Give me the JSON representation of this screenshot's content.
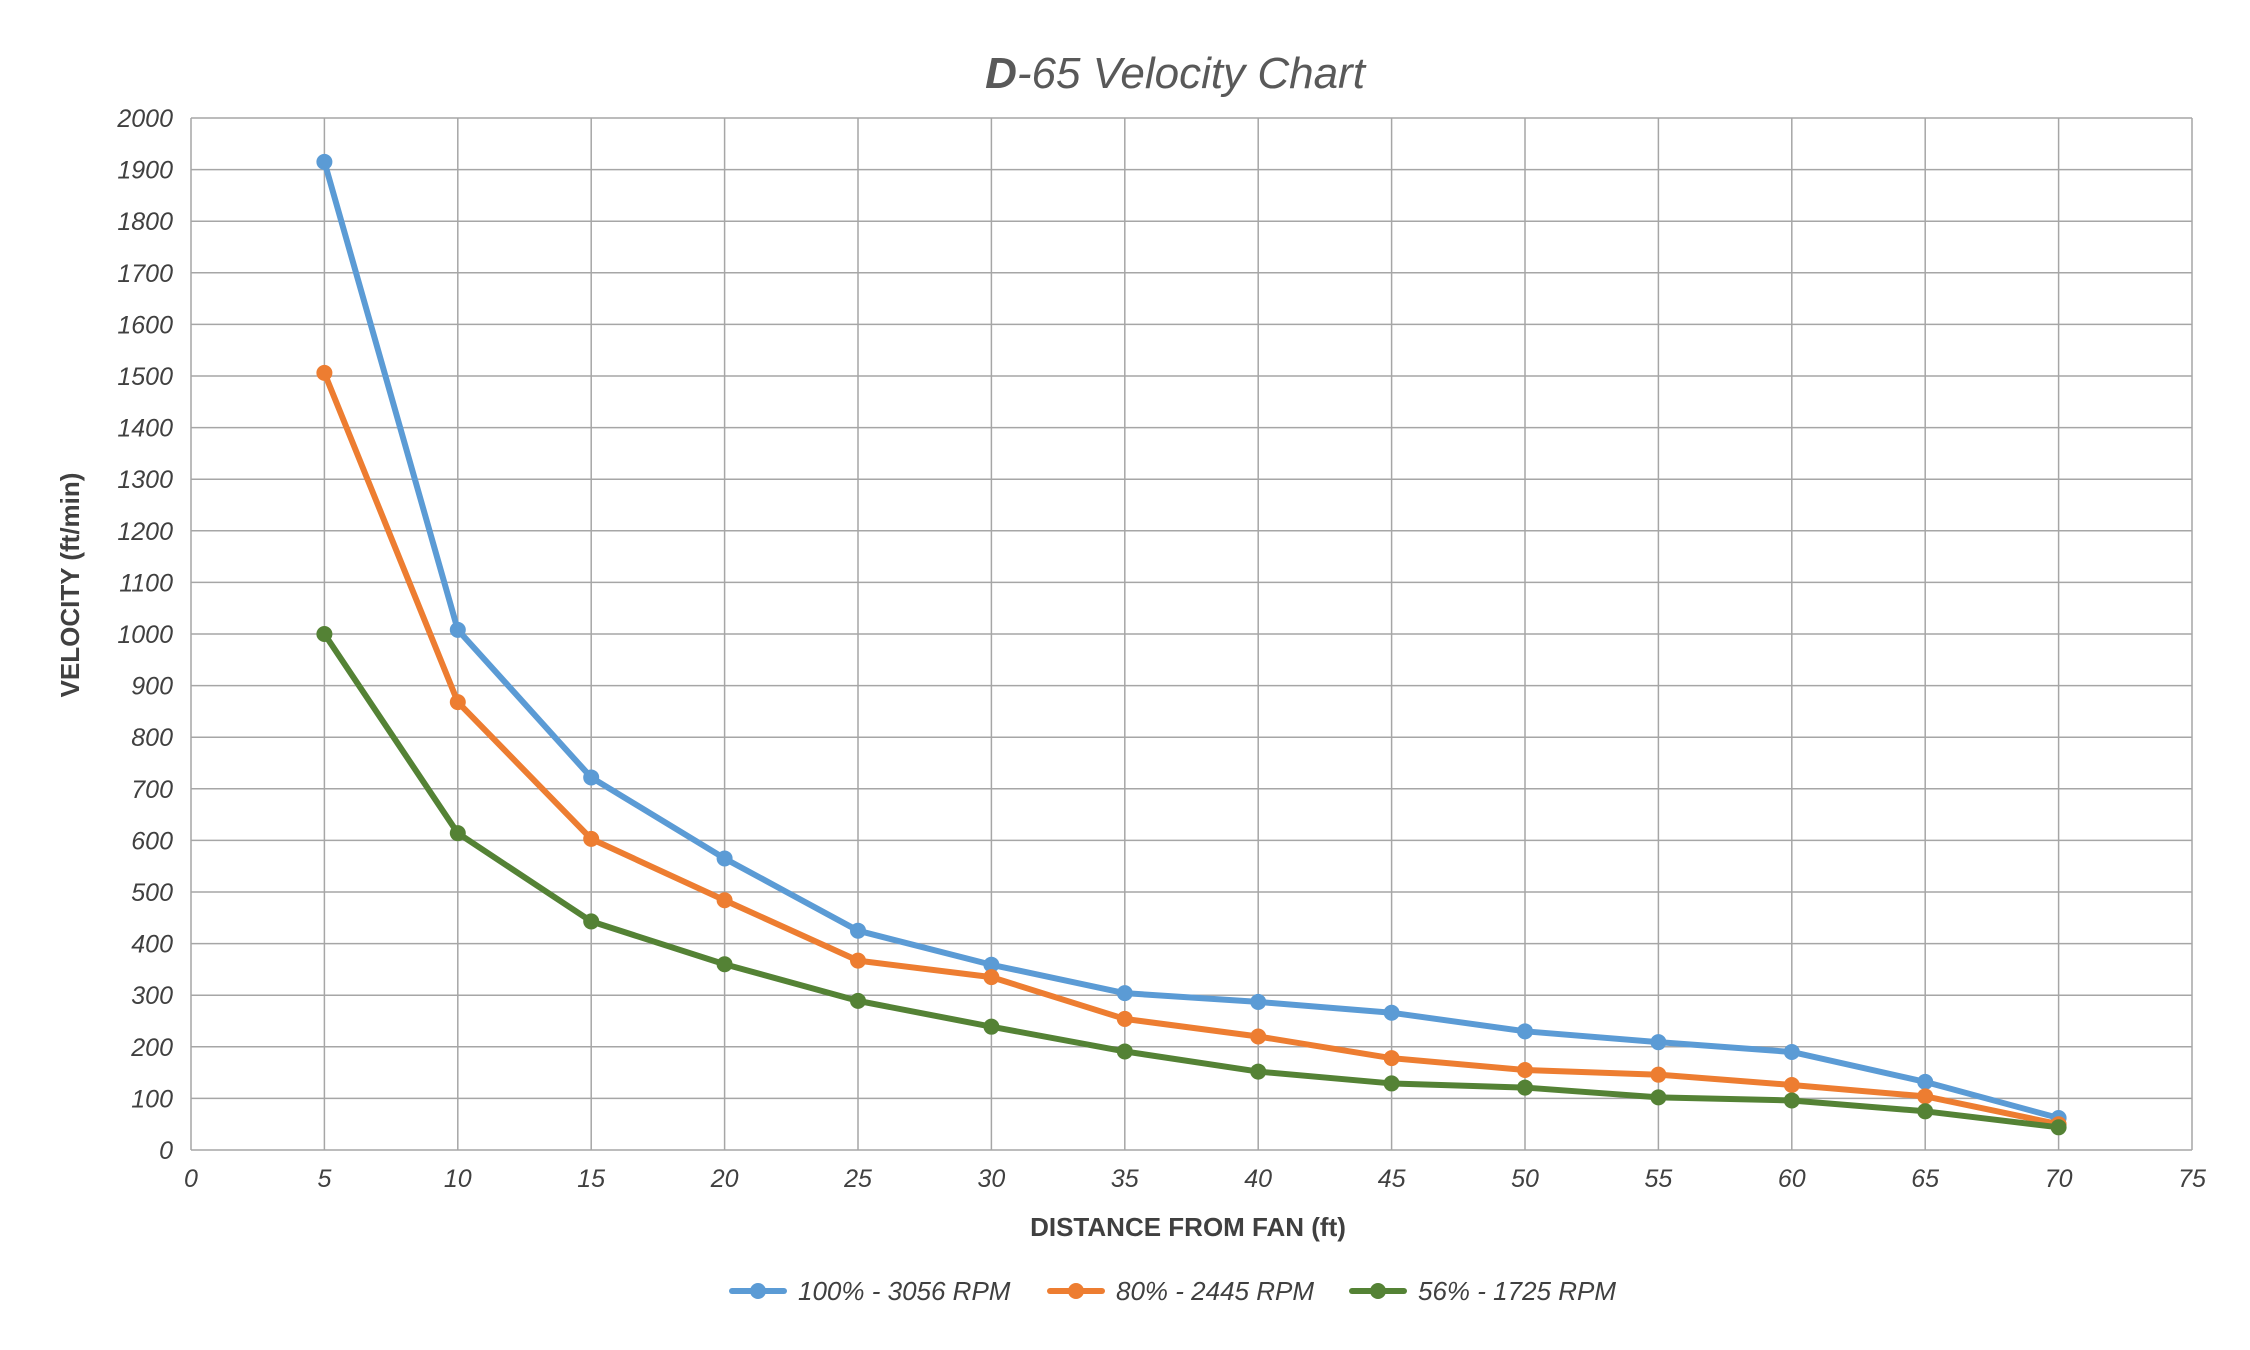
{
  "chart_data": {
    "type": "line",
    "title_prefix": "D",
    "title_rest": "-65 Velocity Chart",
    "xlabel": "DISTANCE FROM FAN (ft)",
    "ylabel": "VELOCITY  (ft/min)",
    "xlim": [
      0,
      75
    ],
    "ylim": [
      0,
      2000
    ],
    "x_ticks": [
      0,
      5,
      10,
      15,
      20,
      25,
      30,
      35,
      40,
      45,
      50,
      55,
      60,
      65,
      70,
      75
    ],
    "y_ticks": [
      0,
      100,
      200,
      300,
      400,
      500,
      600,
      700,
      800,
      900,
      1000,
      1100,
      1200,
      1300,
      1400,
      1500,
      1600,
      1700,
      1800,
      1900,
      2000
    ],
    "grid": true,
    "legend_position": "bottom",
    "x": [
      5,
      10,
      15,
      20,
      25,
      30,
      35,
      40,
      45,
      50,
      55,
      60,
      65,
      70
    ],
    "series": [
      {
        "name": "100% - 3056 RPM",
        "color": "#5b9bd5",
        "values": [
          1915,
          1008,
          722,
          565,
          425,
          359,
          304,
          287,
          266,
          230,
          209,
          190,
          132,
          62
        ]
      },
      {
        "name": "80% - 2445 RPM",
        "color": "#ed7d31",
        "values": [
          1506,
          868,
          603,
          484,
          367,
          335,
          254,
          220,
          178,
          155,
          146,
          126,
          104,
          50
        ]
      },
      {
        "name": "56% - 1725 RPM",
        "color": "#548235",
        "values": [
          1000,
          614,
          443,
          360,
          289,
          239,
          191,
          152,
          129,
          121,
          102,
          96,
          75,
          44
        ]
      }
    ]
  }
}
